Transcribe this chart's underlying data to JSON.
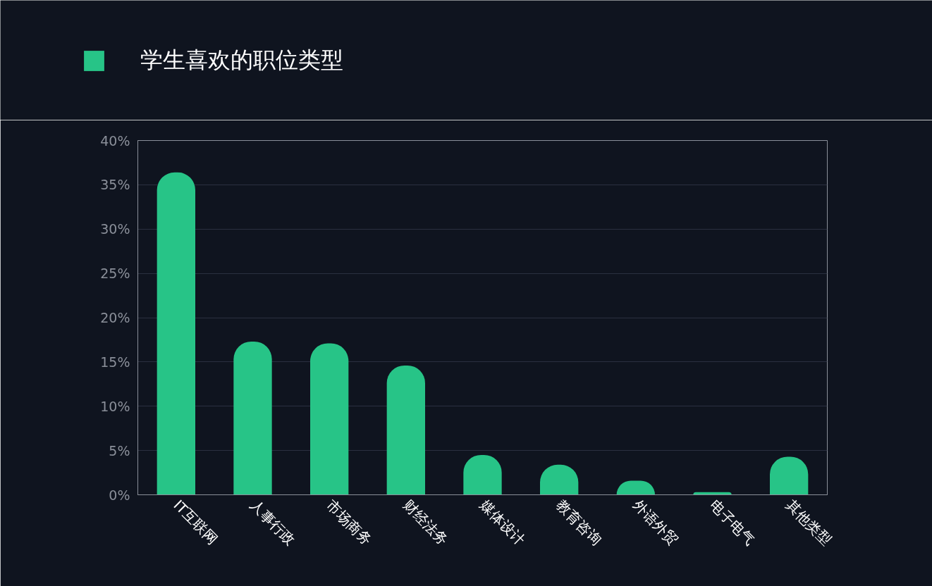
{
  "chart_data": {
    "type": "bar",
    "categories": [
      "IT互联网",
      "人事行政",
      "市场商务",
      "财经法务",
      "媒体设计",
      "教育咨询",
      "外语外贸",
      "电子电气",
      "其他类型"
    ],
    "series": [
      {
        "name": "学生喜欢的职位类型",
        "color": "#27c487",
        "values": [
          36.4,
          17.3,
          17.1,
          14.6,
          4.5,
          3.4,
          1.6,
          0.3,
          4.3
        ]
      }
    ],
    "ylim": [
      0,
      40
    ],
    "yticks": [
      {
        "value": 0,
        "label": "0%"
      },
      {
        "value": 5,
        "label": "5%"
      },
      {
        "value": 10,
        "label": "10%"
      },
      {
        "value": 15,
        "label": "15%"
      },
      {
        "value": 20,
        "label": "20%"
      },
      {
        "value": 25,
        "label": "25%"
      },
      {
        "value": 30,
        "label": "30%"
      },
      {
        "value": 35,
        "label": "35%"
      },
      {
        "value": 40,
        "label": "40%"
      }
    ],
    "grid": "y",
    "legend": "top left"
  }
}
